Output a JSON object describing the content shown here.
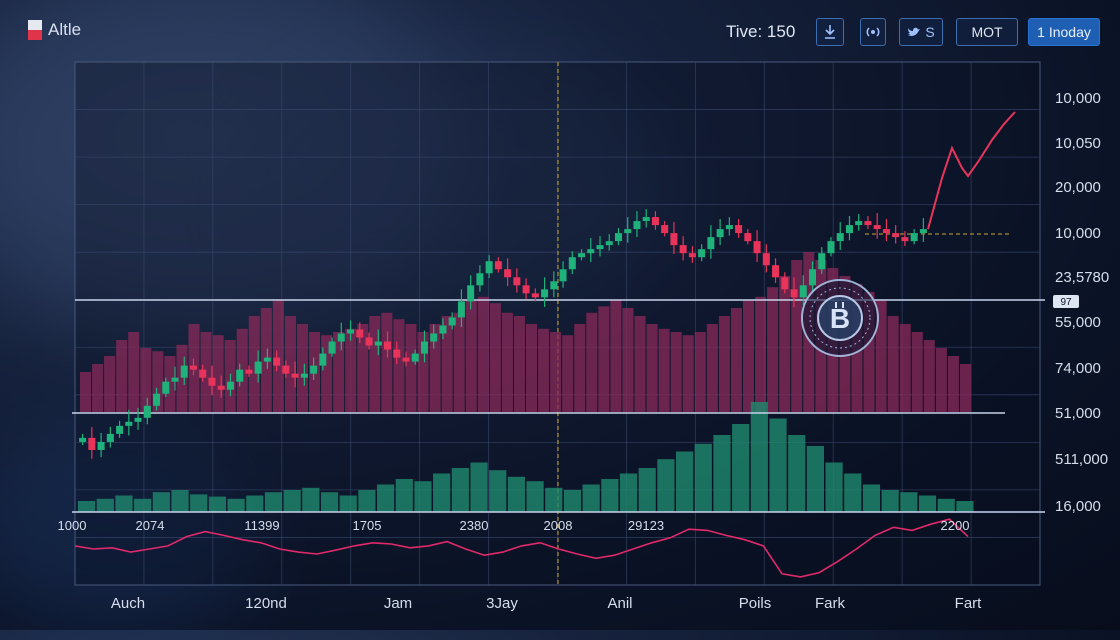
{
  "app": {
    "title": "Altle"
  },
  "toolbar": {
    "time_label": "Tive: 150",
    "buttons": [
      {
        "label": "",
        "icon": "download-icon"
      },
      {
        "label": "",
        "icon": "signal-icon"
      },
      {
        "label": "S",
        "icon": "bird-icon"
      },
      {
        "label": "MOT",
        "icon": ""
      },
      {
        "label": "1 Inoday",
        "icon": ""
      }
    ]
  },
  "colors": {
    "up": "#1fb27a",
    "down": "#e8345a",
    "volume": "#8a2a5a",
    "volume_green": "#1f8a6e",
    "grid": "#3a4a6e",
    "level": "#c8d3ea",
    "dashed": "#c8a534",
    "indicator": "#e02a6a"
  },
  "chart_data": {
    "type": "candlestick",
    "title": "",
    "y_tick_labels": [
      "10,000",
      "10,050",
      "20,000",
      "10,000",
      "23,5780",
      "55,000",
      "74,000",
      "51,000",
      "511,000",
      "16,000"
    ],
    "price_badge": "97",
    "sub_x_labels": [
      "1000",
      "2074",
      "11399",
      "1705",
      "2380",
      "2008",
      "29123",
      "2200"
    ],
    "x_labels": [
      "Auch",
      "120nd",
      "Jam",
      "3Jay",
      "Anil",
      "Poils",
      "Fark",
      "Fart"
    ],
    "candles_close": [
      34,
      31,
      33,
      35,
      37,
      38,
      39,
      42,
      45,
      48,
      49,
      52,
      51,
      49,
      47,
      46,
      48,
      51,
      50,
      53,
      54,
      52,
      50,
      49,
      50,
      52,
      55,
      58,
      60,
      61,
      59,
      57,
      58,
      56,
      54,
      53,
      55,
      58,
      60,
      62,
      64,
      68,
      72,
      75,
      78,
      76,
      74,
      72,
      70,
      69,
      71,
      73,
      76,
      79,
      80,
      81,
      82,
      83,
      85,
      86,
      88,
      89,
      87,
      85,
      82,
      80,
      79,
      81,
      84,
      86,
      87,
      85,
      83,
      80,
      77,
      74,
      71,
      69,
      72,
      76,
      80,
      83,
      85,
      87,
      88,
      87,
      86,
      85,
      84,
      83,
      85,
      86
    ],
    "volume_upper": [
      0.25,
      0.3,
      0.35,
      0.45,
      0.5,
      0.4,
      0.38,
      0.35,
      0.42,
      0.55,
      0.5,
      0.48,
      0.45,
      0.52,
      0.6,
      0.65,
      0.7,
      0.6,
      0.55,
      0.5,
      0.48,
      0.5,
      0.52,
      0.55,
      0.6,
      0.62,
      0.58,
      0.55,
      0.5,
      0.55,
      0.6,
      0.62,
      0.7,
      0.72,
      0.68,
      0.62,
      0.6,
      0.55,
      0.52,
      0.5,
      0.48,
      0.55,
      0.62,
      0.66,
      0.7,
      0.65,
      0.6,
      0.55,
      0.52,
      0.5,
      0.48,
      0.5,
      0.55,
      0.6,
      0.65,
      0.7,
      0.72,
      0.78,
      0.85,
      0.95,
      1.0,
      0.95,
      0.9,
      0.85,
      0.8,
      0.75,
      0.7,
      0.6,
      0.55,
      0.5,
      0.45,
      0.4,
      0.35,
      0.3
    ],
    "volume_lower": [
      0.1,
      0.12,
      0.15,
      0.12,
      0.18,
      0.2,
      0.16,
      0.14,
      0.12,
      0.15,
      0.18,
      0.2,
      0.22,
      0.18,
      0.15,
      0.2,
      0.25,
      0.3,
      0.28,
      0.35,
      0.4,
      0.45,
      0.38,
      0.32,
      0.28,
      0.22,
      0.2,
      0.25,
      0.3,
      0.35,
      0.4,
      0.48,
      0.55,
      0.62,
      0.7,
      0.8,
      1.0,
      0.85,
      0.7,
      0.6,
      0.45,
      0.35,
      0.25,
      0.2,
      0.18,
      0.15,
      0.12,
      0.1
    ],
    "indicator": [
      0.55,
      0.5,
      0.52,
      0.45,
      0.5,
      0.55,
      0.7,
      0.78,
      0.72,
      0.65,
      0.6,
      0.5,
      0.45,
      0.42,
      0.48,
      0.55,
      0.6,
      0.58,
      0.52,
      0.55,
      0.62,
      0.5,
      0.4,
      0.45,
      0.55,
      0.6,
      0.5,
      0.42,
      0.35,
      0.4,
      0.5,
      0.6,
      0.68,
      0.82,
      0.8,
      0.72,
      0.65,
      0.55,
      0.1,
      0.05,
      0.12,
      0.3,
      0.5,
      0.72,
      0.85,
      0.8,
      0.9,
      0.98,
      0.7
    ],
    "grid": true,
    "legend": "none"
  }
}
